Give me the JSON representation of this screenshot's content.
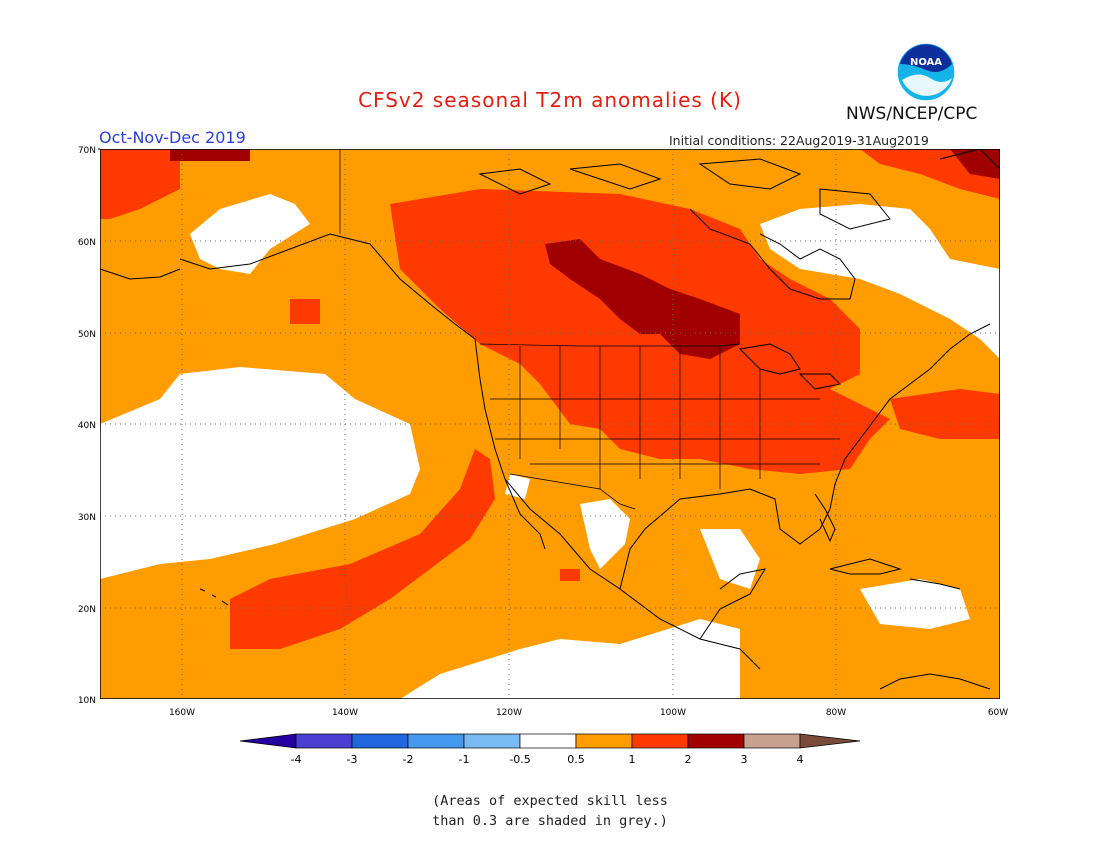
{
  "header": {
    "title": "CFSv2 seasonal T2m anomalies (K)",
    "agency": "NWS/NCEP/CPC",
    "season": "Oct-Nov-Dec 2019",
    "initial_conditions": "Initial conditions: 22Aug2019-31Aug2019",
    "logo_text": "NOAA"
  },
  "map": {
    "projection": "cylindrical lat-lon",
    "lon_range": [
      -170,
      -60
    ],
    "lat_range": [
      10,
      70
    ],
    "lat_ticks": [
      "70N",
      "60N",
      "50N",
      "40N",
      "30N",
      "20N",
      "10N"
    ],
    "lon_ticks": [
      "160W",
      "140W",
      "120W",
      "100W",
      "80W",
      "60W"
    ],
    "grid": "dotted",
    "colors": {
      "white": "#ffffff",
      "light_orange": "#ff9c00",
      "orange_red": "#ff3a00",
      "dark_red": "#a00000",
      "coast": "#000000"
    }
  },
  "colorbar": {
    "labels": [
      "-4",
      "-3",
      "-2",
      "-1",
      "-0.5",
      "0.5",
      "1",
      "2",
      "3",
      "4"
    ],
    "colors": [
      "#2400a0",
      "#4a3fd0",
      "#2266dd",
      "#4499ee",
      "#77bbf2",
      "#ffffff",
      "#ff9c00",
      "#ff3a00",
      "#a00000",
      "#c8a090",
      "#7a4a3a"
    ]
  },
  "note": {
    "line1": "(Areas of expected skill less",
    "line2": "than 0.3 are shaded in grey.)"
  }
}
